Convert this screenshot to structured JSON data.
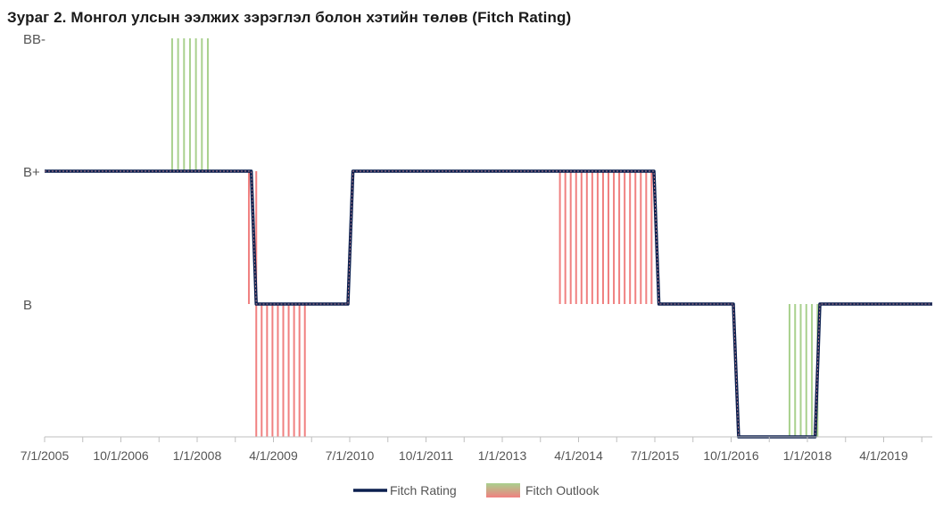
{
  "title": "Зураг 2. Монгол улсын ээлжих зэрэглэл болон хэтийн төлөв (Fitch Rating)",
  "chart_data": {
    "type": "line",
    "title": "Зураг 2. Монгол улсын ээлжих зэрэглэл болон хэтийн төлөв (Fitch Rating)",
    "x_tick_labels": [
      "7/1/2005",
      "10/1/2006",
      "1/1/2008",
      "4/1/2009",
      "7/1/2010",
      "10/1/2011",
      "1/1/2013",
      "4/1/2014",
      "7/1/2015",
      "10/1/2016",
      "1/1/2018",
      "4/1/2019"
    ],
    "y_tick_labels": [
      "B",
      "B+",
      "BB-"
    ],
    "y_levels": {
      "B-": 0,
      "B": 1,
      "B+": 2,
      "BB-": 3
    },
    "ylim": [
      0,
      3
    ],
    "xlim": [
      "2005-07-01",
      "2020-01-01"
    ],
    "grid": false,
    "legend_position": "bottom",
    "series": [
      {
        "name": "Fitch Rating",
        "color": "#0b1f4f",
        "points": [
          [
            "2005-07-01",
            2
          ],
          [
            "2008-11-15",
            2
          ],
          [
            "2008-12-15",
            1
          ],
          [
            "2010-06-15",
            1
          ],
          [
            "2010-07-15",
            2
          ],
          [
            "2015-06-15",
            2
          ],
          [
            "2015-07-15",
            1
          ],
          [
            "2016-10-01",
            1
          ],
          [
            "2016-11-01",
            0
          ],
          [
            "2018-02-01",
            0
          ],
          [
            "2018-03-01",
            1
          ],
          [
            "2020-01-01",
            1
          ]
        ]
      },
      {
        "name": "Fitch Outlook",
        "positive_color": "#a9d18e",
        "negative_color": "#f08080",
        "periods": [
          {
            "sign": "positive",
            "from_level": 2,
            "to_level": 3,
            "start": "2007-08-01",
            "end": "2008-03-01"
          },
          {
            "sign": "negative",
            "from_level": 2,
            "to_level": 1,
            "start": "2008-11-01",
            "end": "2008-12-15"
          },
          {
            "sign": "negative",
            "from_level": 1,
            "to_level": 0,
            "start": "2008-12-15",
            "end": "2009-10-01"
          },
          {
            "sign": "negative",
            "from_level": 2,
            "to_level": 1,
            "start": "2013-12-01",
            "end": "2015-06-01"
          },
          {
            "sign": "positive",
            "from_level": 0,
            "to_level": 1,
            "start": "2017-09-01",
            "end": "2018-02-15"
          }
        ]
      }
    ]
  }
}
